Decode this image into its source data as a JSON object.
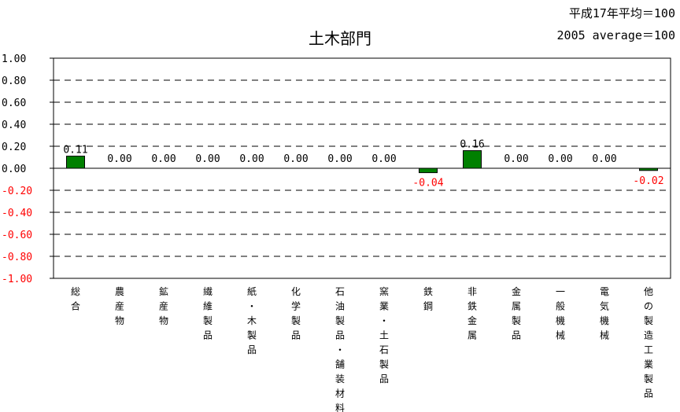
{
  "chart_data": {
    "type": "bar",
    "title": "土木部門",
    "note_lines": [
      "平成17年平均＝100",
      "2005 average＝100"
    ],
    "categories": [
      "総合",
      "農産物",
      "鉱産物",
      "繊維製品",
      "紙・木製品",
      "化学製品",
      "石油製品・舗装材料",
      "窯業・土石製品",
      "鉄鋼",
      "非鉄金属",
      "金属製品",
      "一般機械",
      "電気機械",
      "他の製造工業製品"
    ],
    "values": [
      0.11,
      0.0,
      0.0,
      0.0,
      0.0,
      0.0,
      0.0,
      0.0,
      -0.04,
      0.16,
      0.0,
      0.0,
      0.0,
      -0.02
    ],
    "value_labels": [
      "0.11",
      "0.00",
      "0.00",
      "0.00",
      "0.00",
      "0.00",
      "0.00",
      "0.00",
      "-0.04",
      "0.16",
      "0.00",
      "0.00",
      "0.00",
      "-0.02"
    ],
    "ylim": [
      -1.0,
      1.0
    ],
    "yticks": [
      "1.00",
      "0.80",
      "0.60",
      "0.40",
      "0.20",
      "0.00",
      "-0.20",
      "-0.40",
      "-0.60",
      "-0.80",
      "-1.00"
    ],
    "ytick_values": [
      1.0,
      0.8,
      0.6,
      0.4,
      0.2,
      0.0,
      -0.2,
      -0.4,
      -0.6,
      -0.8,
      -1.0
    ],
    "grid": "dashed horizontal",
    "colors": {
      "bar_fill": "#008000",
      "bar_stroke": "#000000",
      "positive_label": "#000000",
      "negative_label": "#ff0000",
      "negative_tick": "#ff0000",
      "grid": "#000000"
    }
  }
}
